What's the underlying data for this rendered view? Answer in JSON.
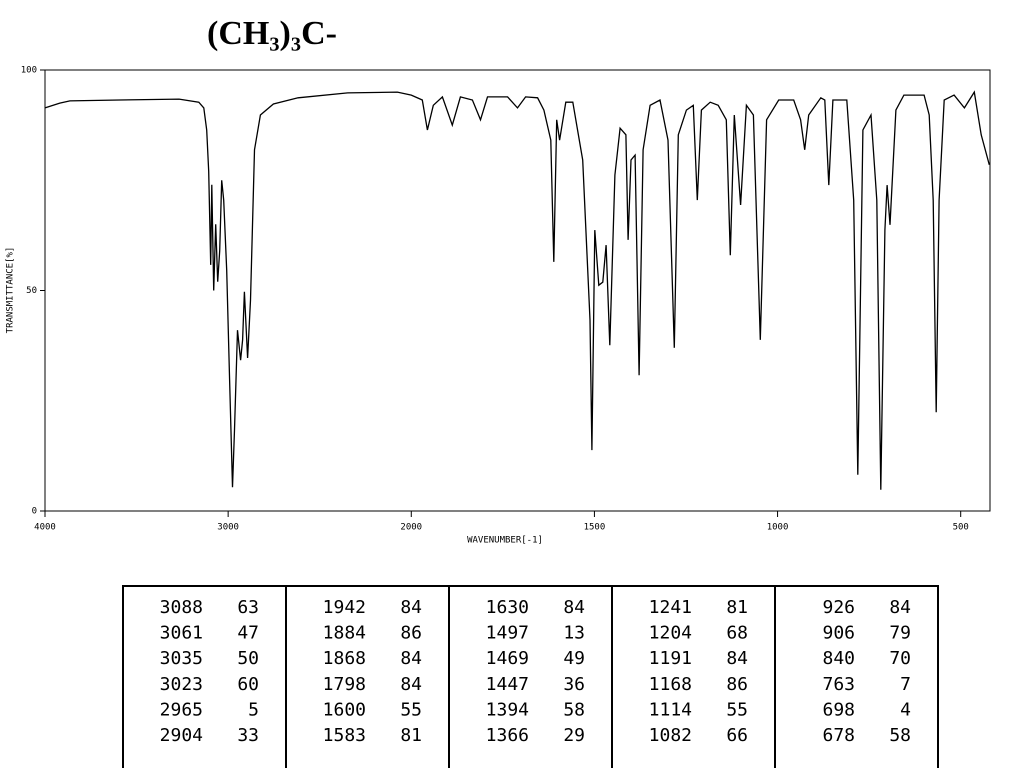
{
  "chart_data": {
    "type": "line",
    "title": "(CH₃)₃C-",
    "xlabel": "WAVENUMBER[-1]",
    "ylabel": "TRANSMITTANCE[%]",
    "xlim": [
      4000,
      420
    ],
    "xscale_break": 2000,
    "xticks": [
      4000,
      3000,
      2000,
      1500,
      1000,
      500
    ],
    "ylim": [
      0,
      100
    ],
    "yticks": [
      0,
      50,
      100
    ],
    "color": "#000000",
    "x": [
      4000,
      3919,
      3864,
      3593,
      3268,
      3160,
      3133,
      3117,
      3106,
      3095,
      3089,
      3079,
      3068,
      3057,
      3046,
      3035,
      3024,
      3008,
      2992,
      2976,
      2965,
      2949,
      2932,
      2921,
      2911,
      2894,
      2878,
      2856,
      2824,
      2753,
      2618,
      2347,
      2076,
      2000,
      1970,
      1956,
      1940,
      1915,
      1888,
      1866,
      1833,
      1811,
      1792,
      1737,
      1710,
      1688,
      1655,
      1638,
      1619,
      1611,
      1603,
      1595,
      1578,
      1559,
      1532,
      1512,
      1507,
      1499,
      1488,
      1477,
      1468,
      1458,
      1444,
      1430,
      1414,
      1408,
      1400,
      1389,
      1378,
      1367,
      1348,
      1321,
      1299,
      1282,
      1271,
      1249,
      1230,
      1219,
      1208,
      1184,
      1162,
      1140,
      1129,
      1118,
      1101,
      1085,
      1066,
      1047,
      1030,
      997,
      956,
      937,
      926,
      915,
      882,
      871,
      860,
      849,
      811,
      792,
      781,
      767,
      745,
      729,
      718,
      707,
      701,
      693,
      677,
      655,
      600,
      586,
      575,
      567,
      559,
      545,
      518,
      490,
      463,
      444,
      422
    ],
    "values": [
      91.4,
      92.5,
      93,
      93.2,
      93.4,
      92.7,
      91.4,
      86.4,
      77,
      55.8,
      74,
      50,
      65,
      52,
      59,
      75,
      70.5,
      54.6,
      29.7,
      5.4,
      18.4,
      41,
      34.2,
      38.8,
      49.7,
      34.7,
      47.8,
      81.9,
      89.8,
      92.3,
      93.7,
      94.8,
      95,
      94.3,
      93.2,
      86.4,
      92,
      93.9,
      87.5,
      93.9,
      93.2,
      88.7,
      93.9,
      93.9,
      91.4,
      93.9,
      93.7,
      90.9,
      84.1,
      56.5,
      88.7,
      84.1,
      92.7,
      92.7,
      79.6,
      43.3,
      13.8,
      63.7,
      51.2,
      51.9,
      60.3,
      37.6,
      76.2,
      86.8,
      85.3,
      61.5,
      79.6,
      80.7,
      30.8,
      81.9,
      92,
      93.2,
      84.1,
      37,
      85.3,
      90.9,
      92,
      70.5,
      90.9,
      92.7,
      92,
      88.7,
      58,
      89.8,
      69.4,
      92,
      89.8,
      38.8,
      88.7,
      93.2,
      93.2,
      88.7,
      81.9,
      89.8,
      93.7,
      93.2,
      73.9,
      93.2,
      93.2,
      70.5,
      8.2,
      86.4,
      89.8,
      70.5,
      4.8,
      63.7,
      73.9,
      64.9,
      90.9,
      94.3,
      94.3,
      89.8,
      70.5,
      22.4,
      70.5,
      93.2,
      94.3,
      91.4,
      95,
      85.3,
      78.5
    ]
  },
  "table": {
    "columns": [
      [
        [
          3088,
          63
        ],
        [
          3061,
          47
        ],
        [
          3035,
          50
        ],
        [
          3023,
          60
        ],
        [
          2965,
          5
        ],
        [
          2904,
          33
        ]
      ],
      [
        [
          1942,
          84
        ],
        [
          1884,
          86
        ],
        [
          1868,
          84
        ],
        [
          1798,
          84
        ],
        [
          1600,
          55
        ],
        [
          1583,
          81
        ]
      ],
      [
        [
          1630,
          84
        ],
        [
          1497,
          13
        ],
        [
          1469,
          49
        ],
        [
          1447,
          36
        ],
        [
          1394,
          58
        ],
        [
          1366,
          29
        ]
      ],
      [
        [
          1241,
          81
        ],
        [
          1204,
          68
        ],
        [
          1191,
          84
        ],
        [
          1168,
          86
        ],
        [
          1114,
          55
        ],
        [
          1082,
          66
        ]
      ],
      [
        [
          926,
          84
        ],
        [
          906,
          79
        ],
        [
          840,
          70
        ],
        [
          763,
          7
        ],
        [
          698,
          4
        ],
        [
          678,
          58
        ]
      ]
    ]
  }
}
